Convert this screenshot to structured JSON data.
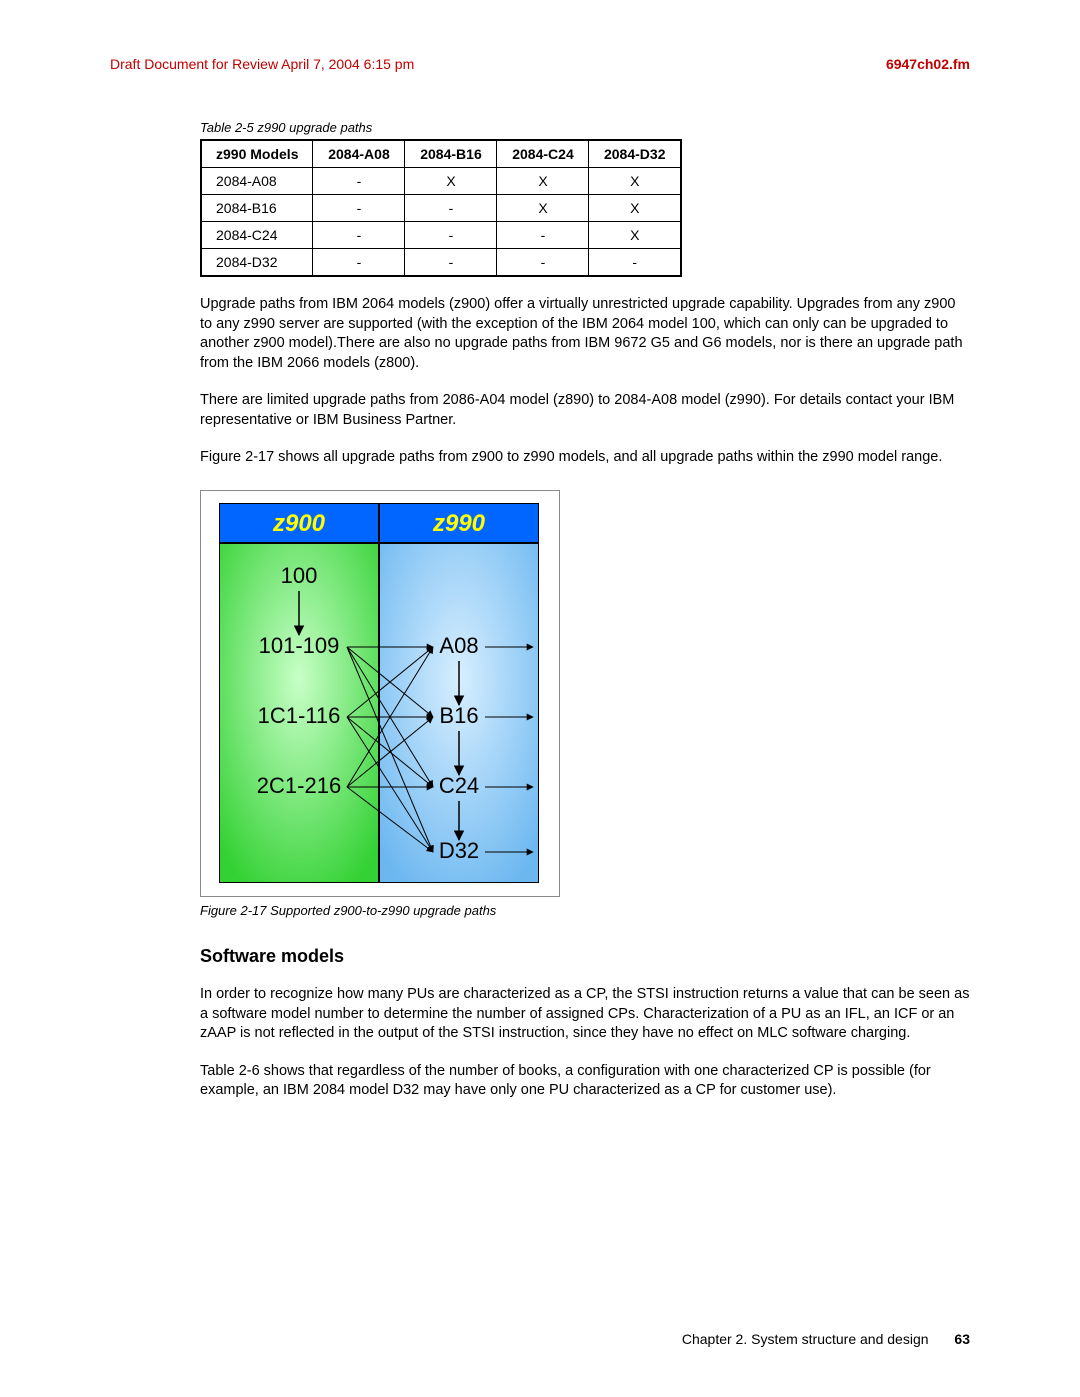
{
  "header": {
    "draft": "Draft Document for Review April 7, 2004 6:15 pm",
    "docfile": "6947ch02.fm"
  },
  "table": {
    "caption": "Table 2-5   z990 upgrade paths",
    "columns": [
      "z990 Models",
      "2084-A08",
      "2084-B16",
      "2084-C24",
      "2084-D32"
    ],
    "rows": [
      [
        "2084-A08",
        "-",
        "X",
        "X",
        "X"
      ],
      [
        "2084-B16",
        "-",
        "-",
        "X",
        "X"
      ],
      [
        "2084-C24",
        "-",
        "-",
        "-",
        "X"
      ],
      [
        "2084-D32",
        "-",
        "-",
        "-",
        "-"
      ]
    ]
  },
  "paragraphs": {
    "p1": "Upgrade paths from IBM 2064 models (z900) offer a virtually unrestricted upgrade capability. Upgrades from any z900 to any z990 server are supported (with the exception of the IBM 2064 model 100, which can only can be upgraded to another z900 model).There are also no upgrade paths from IBM 9672 G5 and G6 models, nor is there an upgrade path from the IBM 2066 models (z800).",
    "p2": "There are limited upgrade paths from 2086-A04 model (z890) to 2084-A08 model (z990). For details contact your IBM representative or IBM Business Partner.",
    "p3": "Figure 2-17 shows all upgrade paths from z900 to z990 models, and all upgrade paths within the z990 model range."
  },
  "figure": {
    "caption": "Figure 2-17   Supported z900-to-z990 upgrade paths",
    "left_header": "z900",
    "right_header": "z990",
    "left_bg_header": "#0066ff",
    "right_bg_header": "#0066ff",
    "left_bg": "#33d133",
    "right_bg": "#6cb7f0",
    "header_font_color": "#ffff00",
    "node_font_color": "#000000",
    "title_fontsize": 24,
    "node_fontsize": 22,
    "left_nodes": [
      "100",
      "101-109",
      "1C1-116",
      "2C1-216"
    ],
    "right_nodes": [
      "A08",
      "B16",
      "C24",
      "D32"
    ],
    "edges_internal_left": [
      [
        "100",
        "101-109"
      ]
    ],
    "edges_cross": [
      [
        "101-109",
        "A08"
      ],
      [
        "101-109",
        "B16"
      ],
      [
        "101-109",
        "C24"
      ],
      [
        "101-109",
        "D32"
      ],
      [
        "1C1-116",
        "A08"
      ],
      [
        "1C1-116",
        "B16"
      ],
      [
        "1C1-116",
        "C24"
      ],
      [
        "1C1-116",
        "D32"
      ],
      [
        "2C1-216",
        "A08"
      ],
      [
        "2C1-216",
        "B16"
      ],
      [
        "2C1-216",
        "C24"
      ],
      [
        "2C1-216",
        "D32"
      ]
    ],
    "edges_internal_right": [
      [
        "A08",
        "B16"
      ],
      [
        "B16",
        "C24"
      ],
      [
        "C24",
        "D32"
      ],
      [
        "A08",
        "right"
      ],
      [
        "B16",
        "right"
      ],
      [
        "C24",
        "right"
      ],
      [
        "D32",
        "right"
      ]
    ]
  },
  "section": {
    "head": "Software models",
    "p1": "In order to recognize how many PUs are characterized as a CP, the STSI instruction returns a value that can be seen as a software model number to determine the number of assigned CPs. Characterization of a PU as an IFL, an ICF or an zAAP is not reflected in the output of the STSI instruction, since they have no effect on MLC software charging.",
    "p2": "Table 2-6 shows that regardless of the number of books, a configuration with one characterized CP is possible (for example, an IBM 2084 model D32 may have only one PU characterized as a CP for customer use)."
  },
  "footer": {
    "chapter": "Chapter 2. System structure and design",
    "page": "63"
  }
}
